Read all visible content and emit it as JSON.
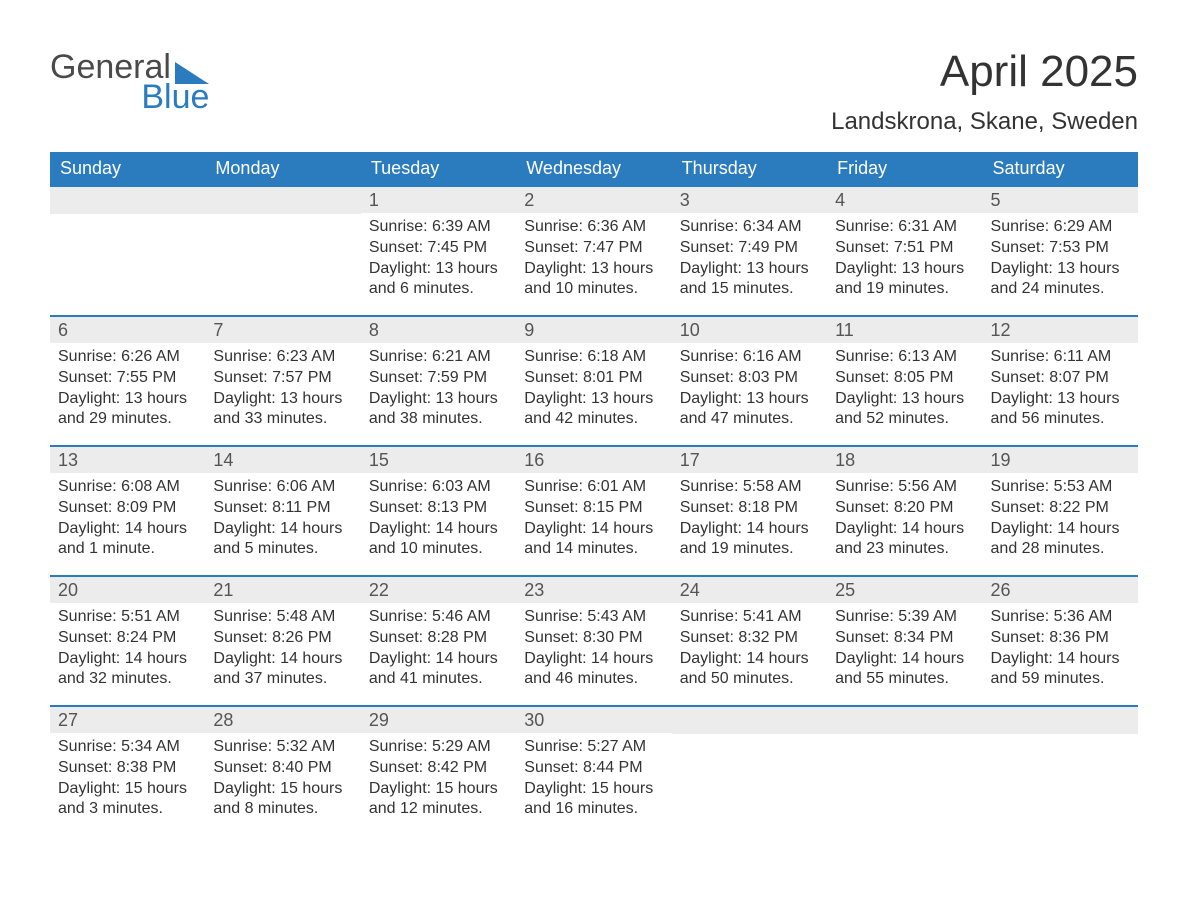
{
  "logo": {
    "word1": "General",
    "word2": "Blue"
  },
  "title": "April 2025",
  "subtitle": "Landskrona, Skane, Sweden",
  "colors": {
    "brand_blue": "#2b7bbf",
    "header_text": "#ffffff",
    "daynum_bg": "#ececec",
    "body_text": "#333333",
    "page_bg": "#ffffff"
  },
  "day_names": [
    "Sunday",
    "Monday",
    "Tuesday",
    "Wednesday",
    "Thursday",
    "Friday",
    "Saturday"
  ],
  "weeks": [
    [
      {
        "num": "",
        "sunrise": "",
        "sunset": "",
        "daylight": ""
      },
      {
        "num": "",
        "sunrise": "",
        "sunset": "",
        "daylight": ""
      },
      {
        "num": "1",
        "sunrise": "Sunrise: 6:39 AM",
        "sunset": "Sunset: 7:45 PM",
        "daylight": "Daylight: 13 hours and 6 minutes."
      },
      {
        "num": "2",
        "sunrise": "Sunrise: 6:36 AM",
        "sunset": "Sunset: 7:47 PM",
        "daylight": "Daylight: 13 hours and 10 minutes."
      },
      {
        "num": "3",
        "sunrise": "Sunrise: 6:34 AM",
        "sunset": "Sunset: 7:49 PM",
        "daylight": "Daylight: 13 hours and 15 minutes."
      },
      {
        "num": "4",
        "sunrise": "Sunrise: 6:31 AM",
        "sunset": "Sunset: 7:51 PM",
        "daylight": "Daylight: 13 hours and 19 minutes."
      },
      {
        "num": "5",
        "sunrise": "Sunrise: 6:29 AM",
        "sunset": "Sunset: 7:53 PM",
        "daylight": "Daylight: 13 hours and 24 minutes."
      }
    ],
    [
      {
        "num": "6",
        "sunrise": "Sunrise: 6:26 AM",
        "sunset": "Sunset: 7:55 PM",
        "daylight": "Daylight: 13 hours and 29 minutes."
      },
      {
        "num": "7",
        "sunrise": "Sunrise: 6:23 AM",
        "sunset": "Sunset: 7:57 PM",
        "daylight": "Daylight: 13 hours and 33 minutes."
      },
      {
        "num": "8",
        "sunrise": "Sunrise: 6:21 AM",
        "sunset": "Sunset: 7:59 PM",
        "daylight": "Daylight: 13 hours and 38 minutes."
      },
      {
        "num": "9",
        "sunrise": "Sunrise: 6:18 AM",
        "sunset": "Sunset: 8:01 PM",
        "daylight": "Daylight: 13 hours and 42 minutes."
      },
      {
        "num": "10",
        "sunrise": "Sunrise: 6:16 AM",
        "sunset": "Sunset: 8:03 PM",
        "daylight": "Daylight: 13 hours and 47 minutes."
      },
      {
        "num": "11",
        "sunrise": "Sunrise: 6:13 AM",
        "sunset": "Sunset: 8:05 PM",
        "daylight": "Daylight: 13 hours and 52 minutes."
      },
      {
        "num": "12",
        "sunrise": "Sunrise: 6:11 AM",
        "sunset": "Sunset: 8:07 PM",
        "daylight": "Daylight: 13 hours and 56 minutes."
      }
    ],
    [
      {
        "num": "13",
        "sunrise": "Sunrise: 6:08 AM",
        "sunset": "Sunset: 8:09 PM",
        "daylight": "Daylight: 14 hours and 1 minute."
      },
      {
        "num": "14",
        "sunrise": "Sunrise: 6:06 AM",
        "sunset": "Sunset: 8:11 PM",
        "daylight": "Daylight: 14 hours and 5 minutes."
      },
      {
        "num": "15",
        "sunrise": "Sunrise: 6:03 AM",
        "sunset": "Sunset: 8:13 PM",
        "daylight": "Daylight: 14 hours and 10 minutes."
      },
      {
        "num": "16",
        "sunrise": "Sunrise: 6:01 AM",
        "sunset": "Sunset: 8:15 PM",
        "daylight": "Daylight: 14 hours and 14 minutes."
      },
      {
        "num": "17",
        "sunrise": "Sunrise: 5:58 AM",
        "sunset": "Sunset: 8:18 PM",
        "daylight": "Daylight: 14 hours and 19 minutes."
      },
      {
        "num": "18",
        "sunrise": "Sunrise: 5:56 AM",
        "sunset": "Sunset: 8:20 PM",
        "daylight": "Daylight: 14 hours and 23 minutes."
      },
      {
        "num": "19",
        "sunrise": "Sunrise: 5:53 AM",
        "sunset": "Sunset: 8:22 PM",
        "daylight": "Daylight: 14 hours and 28 minutes."
      }
    ],
    [
      {
        "num": "20",
        "sunrise": "Sunrise: 5:51 AM",
        "sunset": "Sunset: 8:24 PM",
        "daylight": "Daylight: 14 hours and 32 minutes."
      },
      {
        "num": "21",
        "sunrise": "Sunrise: 5:48 AM",
        "sunset": "Sunset: 8:26 PM",
        "daylight": "Daylight: 14 hours and 37 minutes."
      },
      {
        "num": "22",
        "sunrise": "Sunrise: 5:46 AM",
        "sunset": "Sunset: 8:28 PM",
        "daylight": "Daylight: 14 hours and 41 minutes."
      },
      {
        "num": "23",
        "sunrise": "Sunrise: 5:43 AM",
        "sunset": "Sunset: 8:30 PM",
        "daylight": "Daylight: 14 hours and 46 minutes."
      },
      {
        "num": "24",
        "sunrise": "Sunrise: 5:41 AM",
        "sunset": "Sunset: 8:32 PM",
        "daylight": "Daylight: 14 hours and 50 minutes."
      },
      {
        "num": "25",
        "sunrise": "Sunrise: 5:39 AM",
        "sunset": "Sunset: 8:34 PM",
        "daylight": "Daylight: 14 hours and 55 minutes."
      },
      {
        "num": "26",
        "sunrise": "Sunrise: 5:36 AM",
        "sunset": "Sunset: 8:36 PM",
        "daylight": "Daylight: 14 hours and 59 minutes."
      }
    ],
    [
      {
        "num": "27",
        "sunrise": "Sunrise: 5:34 AM",
        "sunset": "Sunset: 8:38 PM",
        "daylight": "Daylight: 15 hours and 3 minutes."
      },
      {
        "num": "28",
        "sunrise": "Sunrise: 5:32 AM",
        "sunset": "Sunset: 8:40 PM",
        "daylight": "Daylight: 15 hours and 8 minutes."
      },
      {
        "num": "29",
        "sunrise": "Sunrise: 5:29 AM",
        "sunset": "Sunset: 8:42 PM",
        "daylight": "Daylight: 15 hours and 12 minutes."
      },
      {
        "num": "30",
        "sunrise": "Sunrise: 5:27 AM",
        "sunset": "Sunset: 8:44 PM",
        "daylight": "Daylight: 15 hours and 16 minutes."
      },
      {
        "num": "",
        "sunrise": "",
        "sunset": "",
        "daylight": ""
      },
      {
        "num": "",
        "sunrise": "",
        "sunset": "",
        "daylight": ""
      },
      {
        "num": "",
        "sunrise": "",
        "sunset": "",
        "daylight": ""
      }
    ]
  ]
}
